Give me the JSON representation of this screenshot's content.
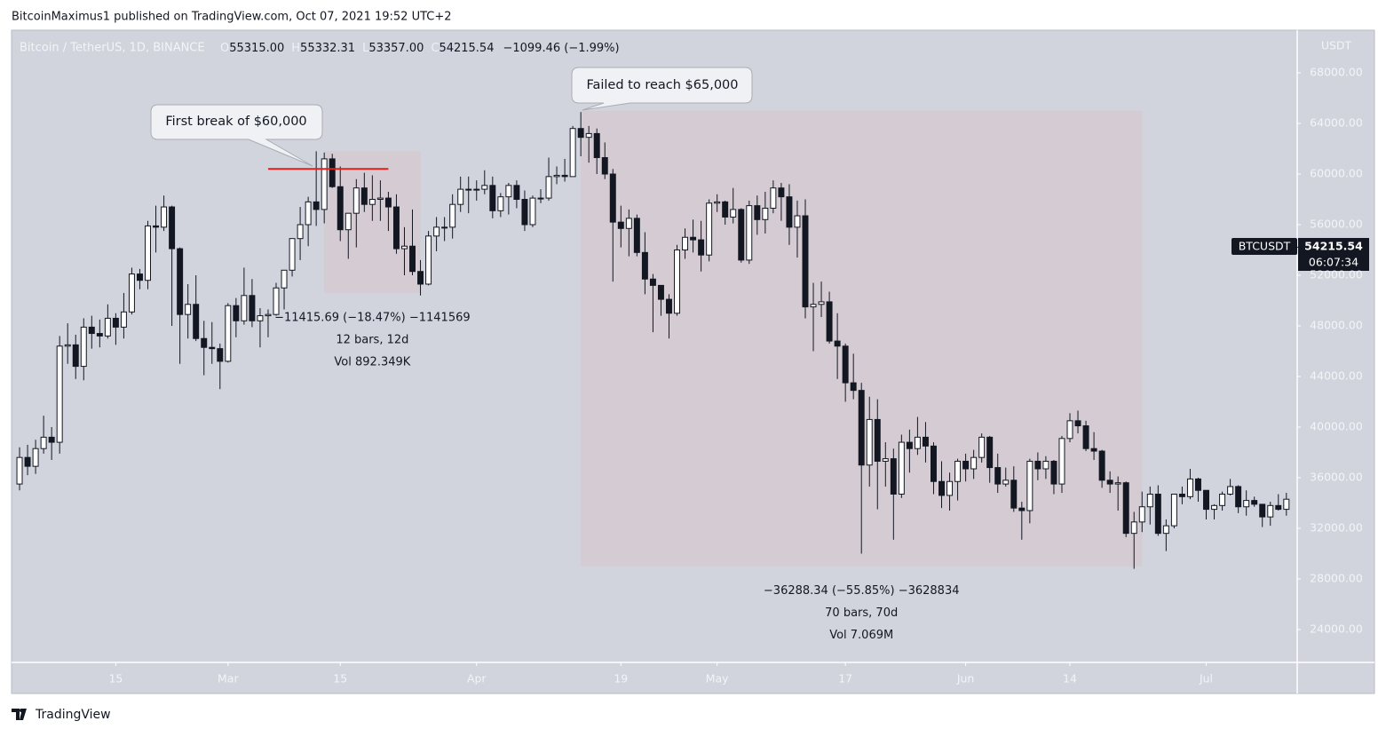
{
  "published": "BitcoinMaximus1 published on TradingView.com, Oct 07, 2021 19:52 UTC+2",
  "footer": "TradingView",
  "chart_data": {
    "type": "candlestick",
    "title": "Bitcoin / TetherUS, 1D, BINANCE",
    "ohlc_legend": [
      "O",
      "55315.00",
      "H",
      "55332.31",
      "L",
      "53357.00",
      "C",
      "54215.54",
      "−1099.46 (−1.99%)"
    ],
    "y_axis_label": "USDT",
    "price_tag": {
      "symbol": "BTCUSDT",
      "price": 54215.54,
      "price_label": "54215.54",
      "countdown": "06:07:34"
    },
    "up_color": "#ffffff",
    "down_color": "#131722",
    "box_color": "#d5c9d1",
    "line_color": "#e0201b",
    "grid": false,
    "xlim": [
      -1,
      159.35
    ],
    "xticks": [
      {
        "value": 12,
        "label": "15"
      },
      {
        "value": 26,
        "label": "Mar"
      },
      {
        "value": 40,
        "label": "15"
      },
      {
        "value": 57,
        "label": "Apr"
      },
      {
        "value": 75,
        "label": "19"
      },
      {
        "value": 87,
        "label": "May"
      },
      {
        "value": 103,
        "label": "17"
      },
      {
        "value": 118,
        "label": "Jun"
      },
      {
        "value": 131,
        "label": "14"
      },
      {
        "value": 148,
        "label": "Jul"
      }
    ],
    "ylim": [
      21400,
      71370
    ],
    "yticks": [
      {
        "value": 24000,
        "label": "24000.00"
      },
      {
        "value": 28000,
        "label": "28000.00"
      },
      {
        "value": 32000,
        "label": "32000.00"
      },
      {
        "value": 36000,
        "label": "36000.00"
      },
      {
        "value": 40000,
        "label": "40000.00"
      },
      {
        "value": 44000,
        "label": "44000.00"
      },
      {
        "value": 48000,
        "label": "48000.00"
      },
      {
        "value": 52000,
        "label": "52000.00"
      },
      {
        "value": 56000,
        "label": "56000.00"
      },
      {
        "value": 60000,
        "label": "60000.00"
      },
      {
        "value": 64000,
        "label": "64000.00"
      },
      {
        "value": 68000,
        "label": "68000.00"
      }
    ],
    "open": [
      35500,
      37600,
      36900,
      38300,
      39200,
      38800,
      46400,
      46500,
      44800,
      47900,
      47400,
      47200,
      48600,
      47900,
      49100,
      52100,
      51600,
      55900,
      55800,
      57400,
      54100,
      48900,
      49700,
      47000,
      46300,
      46200,
      45200,
      49600,
      48400,
      50400,
      48400,
      48800,
      48900,
      51000,
      52400,
      54900,
      56000,
      57800,
      57200,
      61200,
      59000,
      55600,
      56900,
      58900,
      57600,
      58000,
      58100,
      57400,
      54100,
      54300,
      52300,
      51300,
      55100,
      55800,
      55800,
      57600,
      58800,
      58800,
      58800,
      59100,
      57100,
      58200,
      59100,
      58000,
      56000,
      58100,
      58100,
      59800,
      59900,
      59800,
      63600,
      62900,
      63200,
      61300,
      60000,
      56200,
      55700,
      56500,
      53800,
      51700,
      51200,
      50100,
      49000,
      54000,
      55000,
      54800,
      53600,
      57700,
      57800,
      56600,
      57200,
      53200,
      57500,
      56400,
      57300,
      58900,
      58200,
      55800,
      56700,
      49500,
      49700,
      49900,
      46800,
      46400,
      43500,
      42900,
      37000,
      40600,
      37300,
      37500,
      34700,
      38800,
      38300,
      39200,
      38500,
      35700,
      34600,
      35700,
      37300,
      36700,
      37600,
      39200,
      36800,
      35500,
      35800,
      33600,
      33400,
      37300,
      36700,
      37300,
      35500,
      39100,
      40500,
      40100,
      38300,
      38100,
      35800,
      35500,
      35600,
      31600,
      32500,
      33700,
      34700,
      31600,
      32200,
      34700,
      34500,
      35900,
      35000,
      33500,
      33800,
      34700,
      35300,
      33700,
      34200,
      33900,
      32900,
      33800,
      33500
    ],
    "high": [
      38400,
      38600,
      39000,
      40900,
      40000,
      47200,
      48200,
      47300,
      48600,
      48800,
      48500,
      49700,
      49000,
      50600,
      52600,
      52500,
      56300,
      57500,
      58300,
      57500,
      54200,
      51300,
      52000,
      48400,
      48300,
      46600,
      49800,
      50200,
      52600,
      51700,
      49400,
      49300,
      51400,
      52400,
      54900,
      57400,
      58200,
      61800,
      61700,
      61600,
      60600,
      56900,
      59600,
      60100,
      59900,
      59500,
      58600,
      58400,
      55800,
      57200,
      53200,
      55500,
      56600,
      56600,
      58400,
      59800,
      59800,
      59500,
      60300,
      59800,
      58500,
      59300,
      59500,
      58700,
      58300,
      58800,
      61300,
      60600,
      61200,
      63800,
      64900,
      63800,
      63600,
      62500,
      60400,
      57500,
      57200,
      56800,
      55400,
      52100,
      51200,
      50500,
      54400,
      55700,
      56400,
      56300,
      58000,
      58400,
      57900,
      58900,
      57300,
      57900,
      58300,
      58600,
      59500,
      59300,
      59200,
      57900,
      58000,
      51400,
      51500,
      50700,
      49000,
      46600,
      45800,
      43500,
      42400,
      42200,
      38800,
      38300,
      39400,
      39800,
      40800,
      40400,
      38800,
      37300,
      36400,
      37500,
      37900,
      38200,
      39500,
      39300,
      37900,
      36800,
      36900,
      34100,
      37500,
      38000,
      37700,
      37400,
      39300,
      41100,
      41300,
      40500,
      39600,
      38200,
      36500,
      36100,
      35700,
      33300,
      34900,
      35300,
      35400,
      32700,
      34700,
      35300,
      36700,
      36000,
      35000,
      33900,
      34900,
      35900,
      35400,
      35000,
      34500,
      33900,
      34100,
      34700,
      34800
    ],
    "low": [
      35000,
      36200,
      36300,
      37900,
      37400,
      37900,
      45000,
      43800,
      43700,
      46200,
      46300,
      47000,
      46500,
      47000,
      48900,
      50900,
      50900,
      53800,
      55500,
      48000,
      45000,
      47000,
      46800,
      44100,
      45000,
      43000,
      45100,
      47100,
      48100,
      47900,
      46300,
      47100,
      48800,
      49300,
      51900,
      53200,
      54300,
      55900,
      56100,
      58900,
      54700,
      53300,
      54200,
      57000,
      56300,
      56300,
      55500,
      53700,
      52000,
      52000,
      50400,
      51200,
      53900,
      54700,
      54900,
      57000,
      56900,
      57900,
      58400,
      56500,
      56600,
      56800,
      57300,
      55500,
      55800,
      57700,
      57900,
      59200,
      59400,
      59800,
      61400,
      60900,
      60000,
      59600,
      51500,
      54200,
      53500,
      53500,
      50500,
      47500,
      48800,
      47000,
      48800,
      53300,
      53800,
      52300,
      53100,
      57000,
      56000,
      56100,
      53000,
      52900,
      55200,
      55300,
      56900,
      56300,
      54400,
      53400,
      48600,
      46000,
      48700,
      46600,
      43800,
      42000,
      42200,
      30000,
      35300,
      33500,
      35300,
      31100,
      34400,
      36400,
      37800,
      37200,
      34700,
      33600,
      33400,
      34200,
      35700,
      35900,
      37200,
      35600,
      34800,
      35300,
      33300,
      31100,
      32400,
      35800,
      35900,
      34700,
      34800,
      38800,
      39500,
      38100,
      37400,
      35200,
      34800,
      33400,
      31300,
      28800,
      31700,
      32300,
      31400,
      30200,
      32000,
      33900,
      34300,
      34100,
      32700,
      32700,
      33400,
      34600,
      33200,
      33000,
      33700,
      32100,
      32200,
      33400,
      33000
    ],
    "close": [
      37600,
      36900,
      38300,
      39200,
      38800,
      46400,
      46500,
      44800,
      47900,
      47400,
      47200,
      48600,
      47900,
      49100,
      52100,
      51600,
      55900,
      55800,
      57400,
      54100,
      48900,
      49700,
      47000,
      46300,
      46200,
      45200,
      49600,
      48400,
      50400,
      48400,
      48800,
      48900,
      51000,
      52400,
      54900,
      56000,
      57800,
      57200,
      61200,
      59000,
      55600,
      56900,
      58900,
      57600,
      58000,
      58100,
      57400,
      54100,
      54300,
      52300,
      51300,
      55100,
      55800,
      55800,
      57600,
      58800,
      58800,
      58800,
      59100,
      57100,
      58200,
      59100,
      58000,
      56000,
      58100,
      58100,
      59800,
      59900,
      59800,
      63600,
      62900,
      63200,
      61300,
      60000,
      56200,
      55700,
      56500,
      53800,
      51700,
      51200,
      50100,
      49000,
      54000,
      55000,
      54800,
      53600,
      57700,
      57800,
      56600,
      57200,
      53200,
      57500,
      56400,
      57300,
      58900,
      58200,
      55800,
      56700,
      49500,
      49700,
      49900,
      46800,
      46400,
      43500,
      42900,
      37000,
      40600,
      37300,
      37500,
      34700,
      38800,
      38300,
      39200,
      38500,
      35700,
      34600,
      35700,
      37300,
      36700,
      37600,
      39200,
      36800,
      35500,
      35800,
      33600,
      33400,
      37300,
      36700,
      37300,
      35500,
      39100,
      40500,
      40100,
      38300,
      38100,
      35800,
      35500,
      35600,
      31600,
      32500,
      33700,
      34700,
      31600,
      32200,
      34700,
      34500,
      35900,
      35000,
      33500,
      33800,
      34700,
      35300,
      33700,
      34200,
      33900,
      32900,
      33800,
      33500,
      34300
    ],
    "hline": {
      "x": [
        31,
        46
      ],
      "y": 60400
    },
    "ranges": [
      {
        "x": [
          38,
          50
        ],
        "y": [
          61800,
          50600
        ],
        "lines": [
          "−11415.69 (−18.47%) −1141569",
          "12 bars, 12d",
          "Vol 892.349K"
        ]
      },
      {
        "x": [
          70,
          140
        ],
        "y": [
          65000,
          29000
        ],
        "lines": [
          "−36288.34 (−55.85%) −3628834",
          "70 bars, 70d",
          "Vol 7.069M"
        ]
      }
    ],
    "callouts": [
      "First break of $60,000",
      "Failed to reach $65,000"
    ]
  }
}
